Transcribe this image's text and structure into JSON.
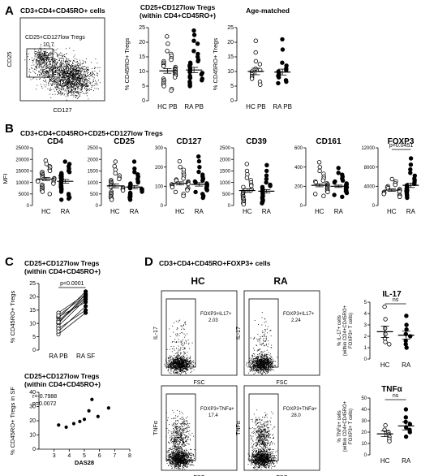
{
  "labels": {
    "A": "A",
    "B": "B",
    "C": "C",
    "D": "D"
  },
  "panel_a": {
    "facs_title": "CD3+CD4+CD45RO+ cells",
    "gate_label": "CD25+CD127low Tregs",
    "gate_value": "10.7",
    "facs_xlabel": "CD127",
    "facs_ylabel": "CD25",
    "chart2_title_line1": "CD25+CD127low Tregs",
    "chart2_title_line2": "(within CD4+CD45RO+)",
    "chart3_title": "Age-matched"
  },
  "panel_b": {
    "title": "CD3+CD4+CD45RO+CD25+CD127low Tregs",
    "ylabel": "MFI"
  },
  "panel_c": {
    "title1_line1": "CD25+CD127low Tregs",
    "title1_line2": "(within CD4+CD45RO+)",
    "title2_line1": "CD25+CD127low Tregs",
    "title2_line2": "(within CD4+CD45RO+)",
    "r_text": "r=-0.7988",
    "p_text": "p=0.0072"
  },
  "panel_d": {
    "title": "CD3+CD4+CD45RO+FOXP3+ cells",
    "hc_label": "HC",
    "ra_label": "RA",
    "facs": [
      {
        "ylabel": "IL-17",
        "xlabel": "FSC",
        "gate_label": "FOXP3+IL17+",
        "value": "2.03"
      },
      {
        "ylabel": "IL-17",
        "xlabel": "FSC",
        "gate_label": "FOXP3+IL17+",
        "value": "2.24"
      },
      {
        "ylabel": "TNFα",
        "xlabel": "FSC",
        "gate_label": "FOXP3+TNFa+",
        "value": "17.4"
      },
      {
        "ylabel": "TNFα",
        "xlabel": "FSC",
        "gate_label": "FOXP3+TNFa+",
        "value": "28.0"
      }
    ],
    "il17_title": "IL-17",
    "tnf_title": "TNFα"
  },
  "chart_data": [
    {
      "id": "a_treg",
      "type": "scatter",
      "title": "",
      "ylabel": "% CD45RO+ Tregs",
      "ylim": [
        0,
        25
      ],
      "yticks": [
        0,
        5,
        10,
        15,
        20,
        25
      ],
      "categories": [
        "HC PB",
        "RA PB"
      ],
      "groups": [
        {
          "name": "HC PB",
          "marker": "open",
          "mean": 10.2,
          "sem": 0.8,
          "values": [
            22,
            19.5,
            17,
            16,
            15.3,
            14.5,
            14,
            13.5,
            13,
            12.5,
            12,
            11.8,
            11.5,
            11,
            10.8,
            10.5,
            10,
            9.8,
            9.5,
            9,
            8.8,
            8.5,
            8,
            7.5,
            7,
            6.5,
            6,
            5.5,
            5,
            4,
            3.5
          ]
        },
        {
          "name": "RA PB",
          "marker": "filled",
          "mean": 10.5,
          "sem": 0.9,
          "values": [
            24,
            22.5,
            20.5,
            19.5,
            17,
            16,
            15,
            14,
            13.5,
            13,
            12.5,
            12,
            11.5,
            11,
            10.5,
            10,
            9.8,
            9.5,
            9,
            8.5,
            8,
            7.8,
            7.5,
            7,
            6.5,
            6,
            5.5,
            5
          ]
        }
      ]
    },
    {
      "id": "a_age",
      "type": "scatter",
      "title": "Age-matched",
      "ylabel": "% CD45RO+ Tregs",
      "ylim": [
        0,
        25
      ],
      "yticks": [
        0,
        5,
        10,
        15,
        20,
        25
      ],
      "categories": [
        "HC PB",
        "RA PB"
      ],
      "groups": [
        {
          "name": "HC PB",
          "marker": "open",
          "mean": 10,
          "sem": 1.1,
          "values": [
            20.5,
            16.5,
            13.5,
            12.5,
            11,
            10.5,
            10,
            9.5,
            9,
            8.5,
            8,
            7.5,
            6.5,
            5.5
          ]
        },
        {
          "name": "RA PB",
          "marker": "filled",
          "mean": 9.8,
          "sem": 1.0,
          "values": [
            21,
            17.5,
            13,
            12,
            11,
            10.5,
            10,
            9.5,
            9,
            8.5,
            8,
            7,
            6.5,
            6
          ]
        }
      ]
    },
    {
      "id": "b_cd4",
      "type": "scatter",
      "title": "CD4",
      "ylim": [
        0,
        25000
      ],
      "yticks": [
        0,
        5000,
        10000,
        15000,
        20000,
        25000
      ],
      "categories": [
        "HC",
        "RA"
      ],
      "groups": [
        {
          "name": "HC",
          "marker": "open",
          "mean": 11500,
          "sem": 700,
          "values": [
            19500,
            18000,
            17000,
            16500,
            15500,
            15000,
            14500,
            14000,
            13500,
            13000,
            12500,
            12000,
            11800,
            11500,
            11000,
            10800,
            10500,
            10000,
            9500,
            9000,
            8500,
            8000,
            7500,
            7000,
            6500,
            6000,
            5000
          ]
        },
        {
          "name": "RA",
          "marker": "filled",
          "mean": 10500,
          "sem": 800,
          "values": [
            19000,
            18000,
            17000,
            16000,
            15000,
            14500,
            14000,
            13500,
            13000,
            12500,
            12000,
            11500,
            11000,
            10500,
            10000,
            9500,
            9000,
            8500,
            8000,
            7500,
            7000,
            6500,
            6000,
            5000,
            4500,
            3500,
            3000,
            2500
          ]
        }
      ]
    },
    {
      "id": "b_cd25",
      "type": "scatter",
      "title": "CD25",
      "ylim": [
        0,
        2500
      ],
      "yticks": [
        0,
        500,
        1000,
        1500,
        2000,
        2500
      ],
      "categories": [
        "HC",
        "RA"
      ],
      "groups": [
        {
          "name": "HC",
          "marker": "open",
          "mean": 850,
          "sem": 80,
          "values": [
            1900,
            1700,
            1550,
            1400,
            1300,
            1200,
            1150,
            1100,
            1050,
            1000,
            950,
            900,
            850,
            800,
            780,
            750,
            700,
            650,
            600,
            550,
            500,
            450,
            400,
            350,
            300,
            250
          ]
        },
        {
          "name": "RA",
          "marker": "filled",
          "mean": 800,
          "sem": 70,
          "values": [
            1900,
            1600,
            1450,
            1350,
            1250,
            1150,
            1050,
            1000,
            950,
            900,
            850,
            800,
            750,
            720,
            700,
            650,
            600,
            550,
            500,
            450,
            400,
            350,
            300,
            250
          ]
        }
      ]
    },
    {
      "id": "b_cd127",
      "type": "scatter",
      "title": "CD127",
      "ylim": [
        0,
        300
      ],
      "yticks": [
        0,
        100,
        200,
        300
      ],
      "categories": [
        "HC",
        "RA"
      ],
      "groups": [
        {
          "name": "HC",
          "marker": "open",
          "mean": 115,
          "sem": 8,
          "values": [
            230,
            200,
            185,
            170,
            160,
            150,
            140,
            135,
            130,
            125,
            120,
            115,
            112,
            110,
            105,
            100,
            95,
            90,
            85,
            80,
            70,
            60,
            50
          ]
        },
        {
          "name": "RA",
          "marker": "filled",
          "mean": 110,
          "sem": 9,
          "values": [
            255,
            230,
            200,
            175,
            160,
            150,
            140,
            130,
            125,
            120,
            115,
            110,
            105,
            100,
            95,
            90,
            85,
            80,
            70,
            60,
            50,
            40
          ]
        }
      ]
    },
    {
      "id": "b_cd39",
      "type": "scatter",
      "title": "CD39",
      "ylim": [
        0,
        2500
      ],
      "yticks": [
        0,
        500,
        1000,
        1500,
        2000,
        2500
      ],
      "categories": [
        "HC",
        "RA"
      ],
      "groups": [
        {
          "name": "HC",
          "marker": "open",
          "mean": 650,
          "sem": 80,
          "values": [
            1800,
            1500,
            1350,
            1200,
            1100,
            1000,
            900,
            850,
            800,
            700,
            650,
            600,
            550,
            500,
            450,
            400,
            350,
            300,
            250,
            200,
            150,
            100,
            50
          ]
        },
        {
          "name": "RA",
          "marker": "filled",
          "mean": 620,
          "sem": 70,
          "values": [
            1750,
            1500,
            1300,
            1150,
            1000,
            900,
            850,
            800,
            750,
            700,
            650,
            600,
            550,
            500,
            450,
            400,
            350,
            300,
            250,
            200,
            150,
            100
          ]
        }
      ]
    },
    {
      "id": "b_cd161",
      "type": "scatter",
      "title": "CD161",
      "ylim": [
        0,
        600
      ],
      "yticks": [
        0,
        200,
        400,
        600
      ],
      "categories": [
        "HC",
        "RA"
      ],
      "groups": [
        {
          "name": "HC",
          "marker": "open",
          "mean": 210,
          "sem": 15,
          "values": [
            450,
            400,
            360,
            330,
            300,
            280,
            260,
            250,
            240,
            230,
            220,
            210,
            200,
            190,
            180,
            170,
            160,
            150,
            140,
            120,
            100
          ]
        },
        {
          "name": "RA",
          "marker": "filled",
          "mean": 200,
          "sem": 12,
          "values": [
            390,
            340,
            320,
            300,
            280,
            260,
            250,
            240,
            230,
            220,
            210,
            200,
            190,
            180,
            170,
            160,
            150,
            140,
            130,
            110,
            90
          ]
        }
      ]
    },
    {
      "id": "b_foxp3",
      "type": "scatter",
      "title": "FOXP3",
      "ylim": [
        0,
        12000
      ],
      "yticks": [
        0,
        4000,
        8000,
        12000
      ],
      "categories": [
        "HC",
        "RA"
      ],
      "significance": "p=0.0451",
      "groups": [
        {
          "name": "HC",
          "marker": "open",
          "mean": 3200,
          "sem": 250,
          "values": [
            5500,
            5000,
            4600,
            4300,
            4000,
            3800,
            3600,
            3400,
            3200,
            3000,
            2900,
            2800,
            2600,
            2400,
            2200,
            2000,
            1800
          ]
        },
        {
          "name": "RA",
          "marker": "filled",
          "mean": 4200,
          "sem": 450,
          "values": [
            9800,
            8500,
            7500,
            6800,
            6200,
            5600,
            5200,
            4800,
            4500,
            4200,
            4000,
            3800,
            3500,
            3200,
            3000,
            2800,
            2500,
            2200,
            2000,
            1600
          ]
        }
      ]
    },
    {
      "id": "c_paired",
      "type": "line",
      "ylabel": "% CD45RO+ Tregs",
      "ylim": [
        0,
        25
      ],
      "yticks": [
        0,
        5,
        10,
        15,
        20,
        25
      ],
      "categories": [
        "RA PB",
        "RA SF"
      ],
      "significance": "p<0.0001",
      "pairs": [
        [
          12,
          22
        ],
        [
          10,
          21
        ],
        [
          9,
          19
        ],
        [
          11,
          20
        ],
        [
          8,
          15
        ],
        [
          12.5,
          18
        ],
        [
          6,
          14
        ],
        [
          14,
          21
        ],
        [
          7,
          16.5
        ],
        [
          10.5,
          19.5
        ],
        [
          13,
          20.5
        ]
      ]
    },
    {
      "id": "c_das",
      "type": "scatter",
      "xlabel": "DAS28",
      "ylabel": "% CD45RO+ Tregs in SF",
      "xlim": [
        2,
        8
      ],
      "ylim": [
        0,
        40
      ],
      "xticks": [
        3,
        4,
        5,
        6,
        7,
        8
      ],
      "yticks": [
        0,
        10,
        20,
        30,
        40
      ],
      "points": [
        [
          3.3,
          17
        ],
        [
          3.8,
          15.5
        ],
        [
          4.3,
          18
        ],
        [
          4.7,
          19.5
        ],
        [
          5.0,
          21
        ],
        [
          5.3,
          27
        ],
        [
          5.5,
          35
        ],
        [
          5.9,
          23
        ],
        [
          6.6,
          29
        ]
      ]
    },
    {
      "id": "d_il17",
      "type": "scatter",
      "title": "IL-17",
      "ylabel": "% IL-17+ cells (within CD4+CD45RO+ FOXP3+ T cells)",
      "ylim": [
        0,
        5
      ],
      "yticks": [
        0,
        1,
        2,
        3,
        4,
        5
      ],
      "categories": [
        "HC",
        "RA"
      ],
      "significance": "ns",
      "groups": [
        {
          "name": "HC",
          "marker": "open",
          "mean": 2.4,
          "sem": 0.5,
          "values": [
            4.6,
            3.5,
            2.7,
            2.2,
            1.8,
            1.5,
            1.3
          ]
        },
        {
          "name": "RA",
          "marker": "filled",
          "mean": 2.1,
          "sem": 0.35,
          "values": [
            3.8,
            3.0,
            2.6,
            2.2,
            2.0,
            1.6,
            1.3,
            1.0
          ]
        }
      ]
    },
    {
      "id": "d_tnf",
      "type": "scatter",
      "title": "TNFα",
      "ylabel": "% TNFα+ cells (within CD4+CD45RO+ FOXP3+ T cells)",
      "ylim": [
        0,
        50
      ],
      "yticks": [
        0,
        10,
        20,
        30,
        40,
        50
      ],
      "categories": [
        "HC",
        "RA"
      ],
      "significance": "ns",
      "groups": [
        {
          "name": "HC",
          "marker": "open",
          "mean": 18.5,
          "sem": 2.5,
          "values": [
            26,
            22,
            20,
            18,
            16,
            14,
            12
          ]
        },
        {
          "name": "RA",
          "marker": "filled",
          "mean": 25.5,
          "sem": 3.5,
          "values": [
            40,
            33,
            29,
            27,
            24,
            22,
            20,
            16
          ]
        }
      ]
    }
  ]
}
